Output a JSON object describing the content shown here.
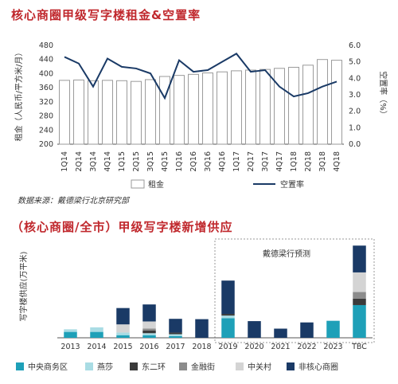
{
  "chart_data": [
    {
      "type": "bar",
      "title": "核心商圈甲级写字楼租金&空置率",
      "categories": [
        "1Q14",
        "2Q14",
        "3Q14",
        "4Q14",
        "1Q15",
        "2Q15",
        "3Q15",
        "4Q15",
        "1Q16",
        "2Q16",
        "3Q16",
        "4Q16",
        "1Q17",
        "2Q17",
        "3Q17",
        "4Q17",
        "1Q18",
        "2Q18",
        "3Q18",
        "4Q18"
      ],
      "ylabel": "租金（人民币/平方米/月）",
      "ylabel_right": "空置率（%）",
      "ylim": [
        200,
        480
      ],
      "yticks": [
        200,
        240,
        280,
        320,
        360,
        400,
        440,
        480
      ],
      "ylim_right": [
        0.0,
        6.0
      ],
      "yticks_right": [
        "0.0",
        "1.0",
        "2.0",
        "3.0",
        "4.0",
        "5.0",
        "6.0"
      ],
      "series": [
        {
          "name": "租金",
          "type": "bar",
          "values": [
            381,
            382,
            380,
            381,
            380,
            378,
            383,
            392,
            395,
            398,
            402,
            405,
            408,
            410,
            412,
            415,
            418,
            424,
            440,
            438
          ]
        },
        {
          "name": "空置率",
          "type": "line",
          "axis": "right",
          "values": [
            5.3,
            4.9,
            3.5,
            5.2,
            4.7,
            4.6,
            4.3,
            2.8,
            5.1,
            4.4,
            4.5,
            5.0,
            5.5,
            4.4,
            4.5,
            3.5,
            2.9,
            3.1,
            3.5,
            3.8
          ]
        }
      ],
      "legend_position": "bottom",
      "source": "数据来源：戴德梁行北京研究部"
    },
    {
      "type": "bar",
      "stacked": true,
      "title": "（核心商圈/全市）甲级写字楼新增供应",
      "categories": [
        "2013",
        "2014",
        "2015",
        "2016",
        "2017",
        "2018",
        "2019",
        "2020",
        "2021",
        "2022",
        "2023",
        "TBC"
      ],
      "ylabel": "写字楼供应(万平米)",
      "annotation": "戴德梁行预测",
      "series": [
        {
          "name": "中央商务区",
          "color": "#1ea0b8",
          "values": [
            18,
            18,
            8,
            8,
            5,
            0,
            60,
            0,
            0,
            0,
            52,
            100
          ]
        },
        {
          "name": "燕莎",
          "color": "#a9dce4",
          "values": [
            8,
            14,
            8,
            6,
            6,
            0,
            8,
            0,
            0,
            0,
            0,
            0
          ]
        },
        {
          "name": "东二环",
          "color": "#3b3b3b",
          "values": [
            0,
            0,
            0,
            8,
            5,
            0,
            5,
            0,
            0,
            0,
            0,
            20
          ]
        },
        {
          "name": "金融街",
          "color": "#8c8c8c",
          "values": [
            0,
            0,
            0,
            6,
            0,
            0,
            0,
            0,
            0,
            0,
            0,
            20
          ]
        },
        {
          "name": "中关村",
          "color": "#d4d4d4",
          "values": [
            0,
            0,
            25,
            22,
            0,
            0,
            0,
            0,
            0,
            0,
            0,
            60
          ]
        },
        {
          "name": "非核心商圈",
          "color": "#1a3a66",
          "values": [
            0,
            0,
            50,
            52,
            42,
            57,
            102,
            51,
            28,
            47,
            0,
            82
          ]
        }
      ],
      "legend_position": "bottom"
    }
  ],
  "colors": {
    "title": "#c0282d",
    "bar_outline": "#9a9a9a",
    "line": "#1a3a66",
    "forecast_box": "#999999"
  }
}
